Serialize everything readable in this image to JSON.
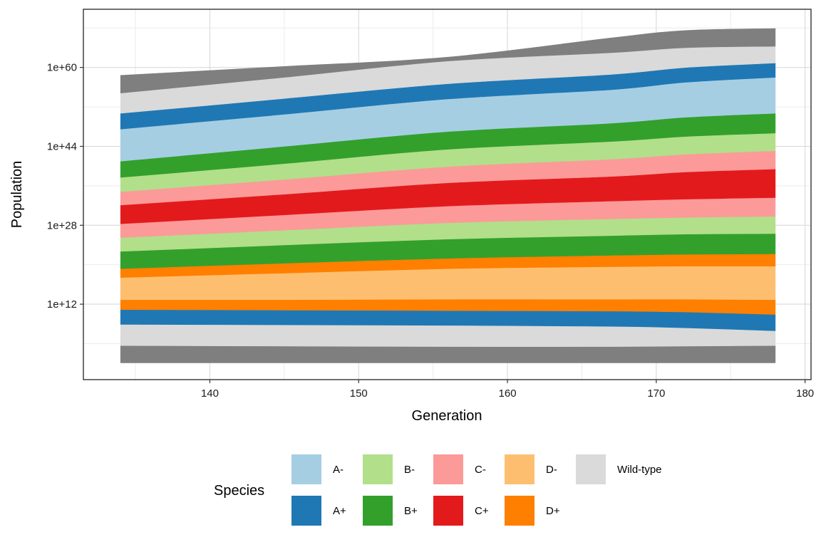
{
  "chart_data": {
    "type": "area",
    "subtype": "stacked-stream",
    "title": "",
    "xlabel": "Generation",
    "ylabel": "Population",
    "x_ticks": [
      140,
      150,
      160,
      170,
      180
    ],
    "x_tick_labels": [
      "140",
      "150",
      "160",
      "170",
      "180"
    ],
    "y_scale": "log10",
    "y_ticks_log10": [
      12,
      28,
      44,
      60
    ],
    "y_tick_labels": [
      "1e+12",
      "1e+28",
      "1e+44",
      "1e+60"
    ],
    "xlim": [
      131.5,
      180.4
    ],
    "ylim_log10": [
      -3.3,
      71.8
    ],
    "grid": true,
    "legend": {
      "title": "Species",
      "position": "bottom",
      "rows": [
        [
          {
            "label": "A-",
            "color": "#A6CEE3"
          },
          {
            "label": "B-",
            "color": "#B2DF8A"
          },
          {
            "label": "C-",
            "color": "#FB9A99"
          },
          {
            "label": "D-",
            "color": "#FDBF6F"
          },
          {
            "label": "Wild-type",
            "color": "#DADADA"
          }
        ],
        [
          {
            "label": "A+",
            "color": "#1F78B4"
          },
          {
            "label": "B+",
            "color": "#33A02C"
          },
          {
            "label": "C+",
            "color": "#E31A1C"
          },
          {
            "label": "D+",
            "color": "#FF7F00"
          }
        ]
      ]
    },
    "x": [
      134,
      145,
      156,
      167,
      172,
      178
    ],
    "boundaries_note": "Band boundaries listed bottom-to-top as log10(population) at each x",
    "bands": [
      {
        "name": "Wild-type (dark)",
        "color": "#7F7F7F",
        "lower": [
          0.1,
          0.1,
          0.1,
          0.1,
          0.1,
          0.1
        ],
        "upper": [
          3.6,
          3.5,
          3.4,
          3.4,
          3.5,
          3.6
        ]
      },
      {
        "name": "Wild-type",
        "color": "#DADADA",
        "lower": [
          3.6,
          3.5,
          3.4,
          3.4,
          3.5,
          3.6
        ],
        "upper": [
          7.9,
          7.8,
          7.7,
          7.5,
          7.2,
          6.6
        ]
      },
      {
        "name": "A+",
        "color": "#1F78B4",
        "lower": [
          7.9,
          7.8,
          7.7,
          7.5,
          7.2,
          6.6
        ],
        "upper": [
          10.9,
          10.8,
          10.7,
          10.6,
          10.4,
          9.9
        ]
      },
      {
        "name": "D+",
        "color": "#FF7F00",
        "lower": [
          10.9,
          10.8,
          10.7,
          10.6,
          10.4,
          9.9
        ],
        "upper": [
          12.9,
          12.9,
          13.0,
          13.0,
          13.0,
          12.9
        ]
      },
      {
        "name": "D-",
        "color": "#FDBF6F",
        "lower": [
          12.9,
          12.9,
          13.0,
          13.0,
          13.0,
          12.9
        ],
        "upper": [
          15.2,
          15.7,
          16.2,
          16.4,
          16.4,
          16.3
        ]
      },
      {
        "name": "D-",
        "color": "#FDBF6F",
        "lower": [
          15.2,
          15.7,
          16.2,
          16.4,
          16.4,
          16.3
        ],
        "upper": [
          17.4,
          18.3,
          19.2,
          19.6,
          19.7,
          19.7
        ]
      },
      {
        "name": "D+",
        "color": "#FF7F00",
        "lower": [
          17.4,
          18.3,
          19.2,
          19.6,
          19.7,
          19.7
        ],
        "upper": [
          19.2,
          20.3,
          21.3,
          21.9,
          22.1,
          22.2
        ]
      },
      {
        "name": "B+",
        "color": "#33A02C",
        "lower": [
          19.2,
          20.3,
          21.3,
          21.9,
          22.1,
          22.2
        ],
        "upper": [
          22.7,
          24.0,
          25.2,
          25.9,
          26.2,
          26.3
        ]
      },
      {
        "name": "B-",
        "color": "#B2DF8A",
        "lower": [
          22.7,
          24.0,
          25.2,
          25.9,
          26.2,
          26.3
        ],
        "upper": [
          25.5,
          27.0,
          28.5,
          29.3,
          29.6,
          29.8
        ]
      },
      {
        "name": "C-",
        "color": "#FB9A99",
        "lower": [
          25.5,
          27.0,
          28.5,
          29.3,
          29.6,
          29.8
        ],
        "upper": [
          28.3,
          30.1,
          31.9,
          32.9,
          33.3,
          33.6
        ]
      },
      {
        "name": "C+",
        "color": "#E31A1C",
        "lower": [
          28.3,
          30.1,
          31.9,
          32.9,
          33.3,
          33.6
        ],
        "upper": [
          30.2,
          32.2,
          34.2,
          35.4,
          36.0,
          36.4
        ]
      },
      {
        "name": "C+",
        "color": "#E31A1C",
        "lower": [
          30.2,
          32.2,
          34.2,
          35.4,
          36.0,
          36.4
        ],
        "upper": [
          32.1,
          34.3,
          36.6,
          37.9,
          38.8,
          39.4
        ]
      },
      {
        "name": "C-",
        "color": "#FB9A99",
        "lower": [
          32.1,
          34.3,
          36.6,
          37.9,
          38.8,
          39.4
        ],
        "upper": [
          34.8,
          37.3,
          39.9,
          41.4,
          42.4,
          43.1
        ]
      },
      {
        "name": "B-",
        "color": "#B2DF8A",
        "lower": [
          34.8,
          37.3,
          39.9,
          41.4,
          42.4,
          43.1
        ],
        "upper": [
          37.7,
          40.5,
          43.4,
          45.0,
          46.0,
          46.7
        ]
      },
      {
        "name": "B+",
        "color": "#33A02C",
        "lower": [
          37.7,
          40.5,
          43.4,
          45.0,
          46.0,
          46.7
        ],
        "upper": [
          41.0,
          44.0,
          47.0,
          48.7,
          49.9,
          50.7
        ]
      },
      {
        "name": "A-",
        "color": "#A6CEE3",
        "lower": [
          41.0,
          44.0,
          47.0,
          48.7,
          49.9,
          50.7
        ],
        "upper": [
          44.4,
          47.3,
          50.3,
          52.1,
          53.5,
          54.4
        ]
      },
      {
        "name": "A-",
        "color": "#A6CEE3",
        "lower": [
          44.4,
          47.3,
          50.3,
          52.1,
          53.5,
          54.4
        ],
        "upper": [
          47.5,
          50.5,
          53.6,
          55.5,
          57.0,
          58.0
        ]
      },
      {
        "name": "A+",
        "color": "#1F78B4",
        "lower": [
          47.5,
          50.5,
          53.6,
          55.5,
          57.0,
          58.0
        ],
        "upper": [
          50.7,
          53.7,
          56.7,
          58.6,
          60.0,
          60.9
        ]
      },
      {
        "name": "Wild-type",
        "color": "#DADADA",
        "lower": [
          50.7,
          53.7,
          56.7,
          58.6,
          60.0,
          60.9
        ],
        "upper": [
          54.8,
          58.0,
          61.3,
          63.0,
          64.0,
          64.3
        ]
      },
      {
        "name": "Wild-type (dark)",
        "color": "#7F7F7F",
        "lower": [
          54.8,
          58.0,
          61.3,
          63.0,
          64.0,
          64.3
        ],
        "upper": [
          58.4,
          60.2,
          62.1,
          66.0,
          67.5,
          67.9
        ]
      }
    ]
  }
}
